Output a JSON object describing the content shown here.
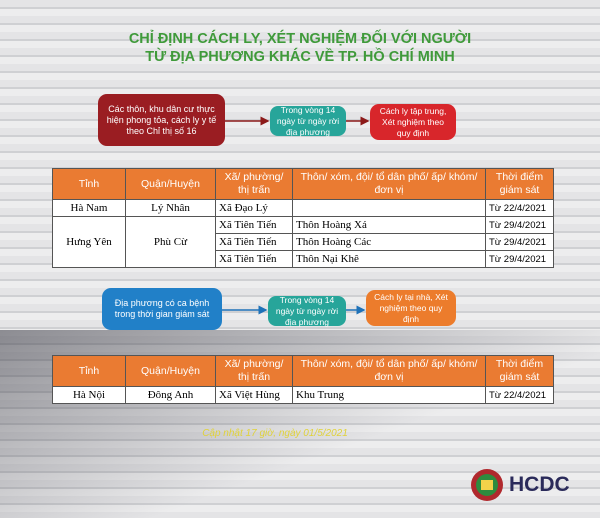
{
  "header": {
    "title_line1": "CHỈ ĐỊNH CÁCH LY, XÉT NGHIỆM ĐỐI VỚI NGƯỜI",
    "title_line2": "TỪ ĐỊA PHƯƠNG KHÁC VỀ TP. HỒ CHÍ MINH"
  },
  "flow1": {
    "source": "Các thôn, khu dân cư thực hiện phong tỏa, cách ly y tế theo Chỉ thị số 16",
    "condition": "Trong vòng 14 ngày từ ngày rời địa phương",
    "action": "Cách ly tập trung, Xét nghiệm theo quy định"
  },
  "table1": {
    "headers": [
      "Tỉnh",
      "Quận/Huyện",
      "Xã/ phường/ thị trấn",
      "Thôn/ xóm, đội/ tổ dân phố/ ấp/ khóm/ đơn vị",
      "Thời điểm giám sát"
    ],
    "groups": [
      {
        "province": "Hà Nam",
        "district": "Lý Nhân",
        "wards": [
          {
            "ward": "Xã Đạo Lý",
            "date": "Từ 22/4/2021"
          }
        ]
      },
      {
        "province": "Hưng Yên",
        "district": "Phù Cừ",
        "wards": [
          {
            "ward": "Xã Tiên Tiến",
            "hamlet": "Thôn Hoàng Xá",
            "date": "Từ 29/4/2021"
          },
          {
            "ward": "Xã Tiên Tiến",
            "hamlet": "Thôn Hoàng Các",
            "date": "Từ 29/4/2021"
          },
          {
            "ward": "Xã Tiên Tiến",
            "hamlet": "Thôn Nại Khê",
            "date": "Từ 29/4/2021"
          }
        ]
      }
    ]
  },
  "flow2": {
    "source": "Địa phương có ca bệnh trong thời gian giám sát",
    "condition": "Trong vòng 14 ngày từ ngày rời địa phương",
    "action": "Cách ly tại nhà, Xét nghiệm theo quy định"
  },
  "table2": {
    "headers": [
      "Tỉnh",
      "Quận/Huyện",
      "Xã/ phường/ thị trấn",
      "Thôn/ xóm, đội/ tổ dân phố/ ấp/ khóm/ đơn vị",
      "Thời điểm giám sát"
    ],
    "groups": [
      {
        "province": "Hà Nội",
        "district": "Đông Anh",
        "wards": [
          {
            "ward": "Xã Việt Hùng",
            "hamlet": "Khu Trung",
            "date": "Từ 22/4/2021"
          }
        ]
      }
    ]
  },
  "footer": {
    "update": "Cập nhật 17 giờ, ngày 01/5/2021",
    "logo": "HCDC"
  }
}
